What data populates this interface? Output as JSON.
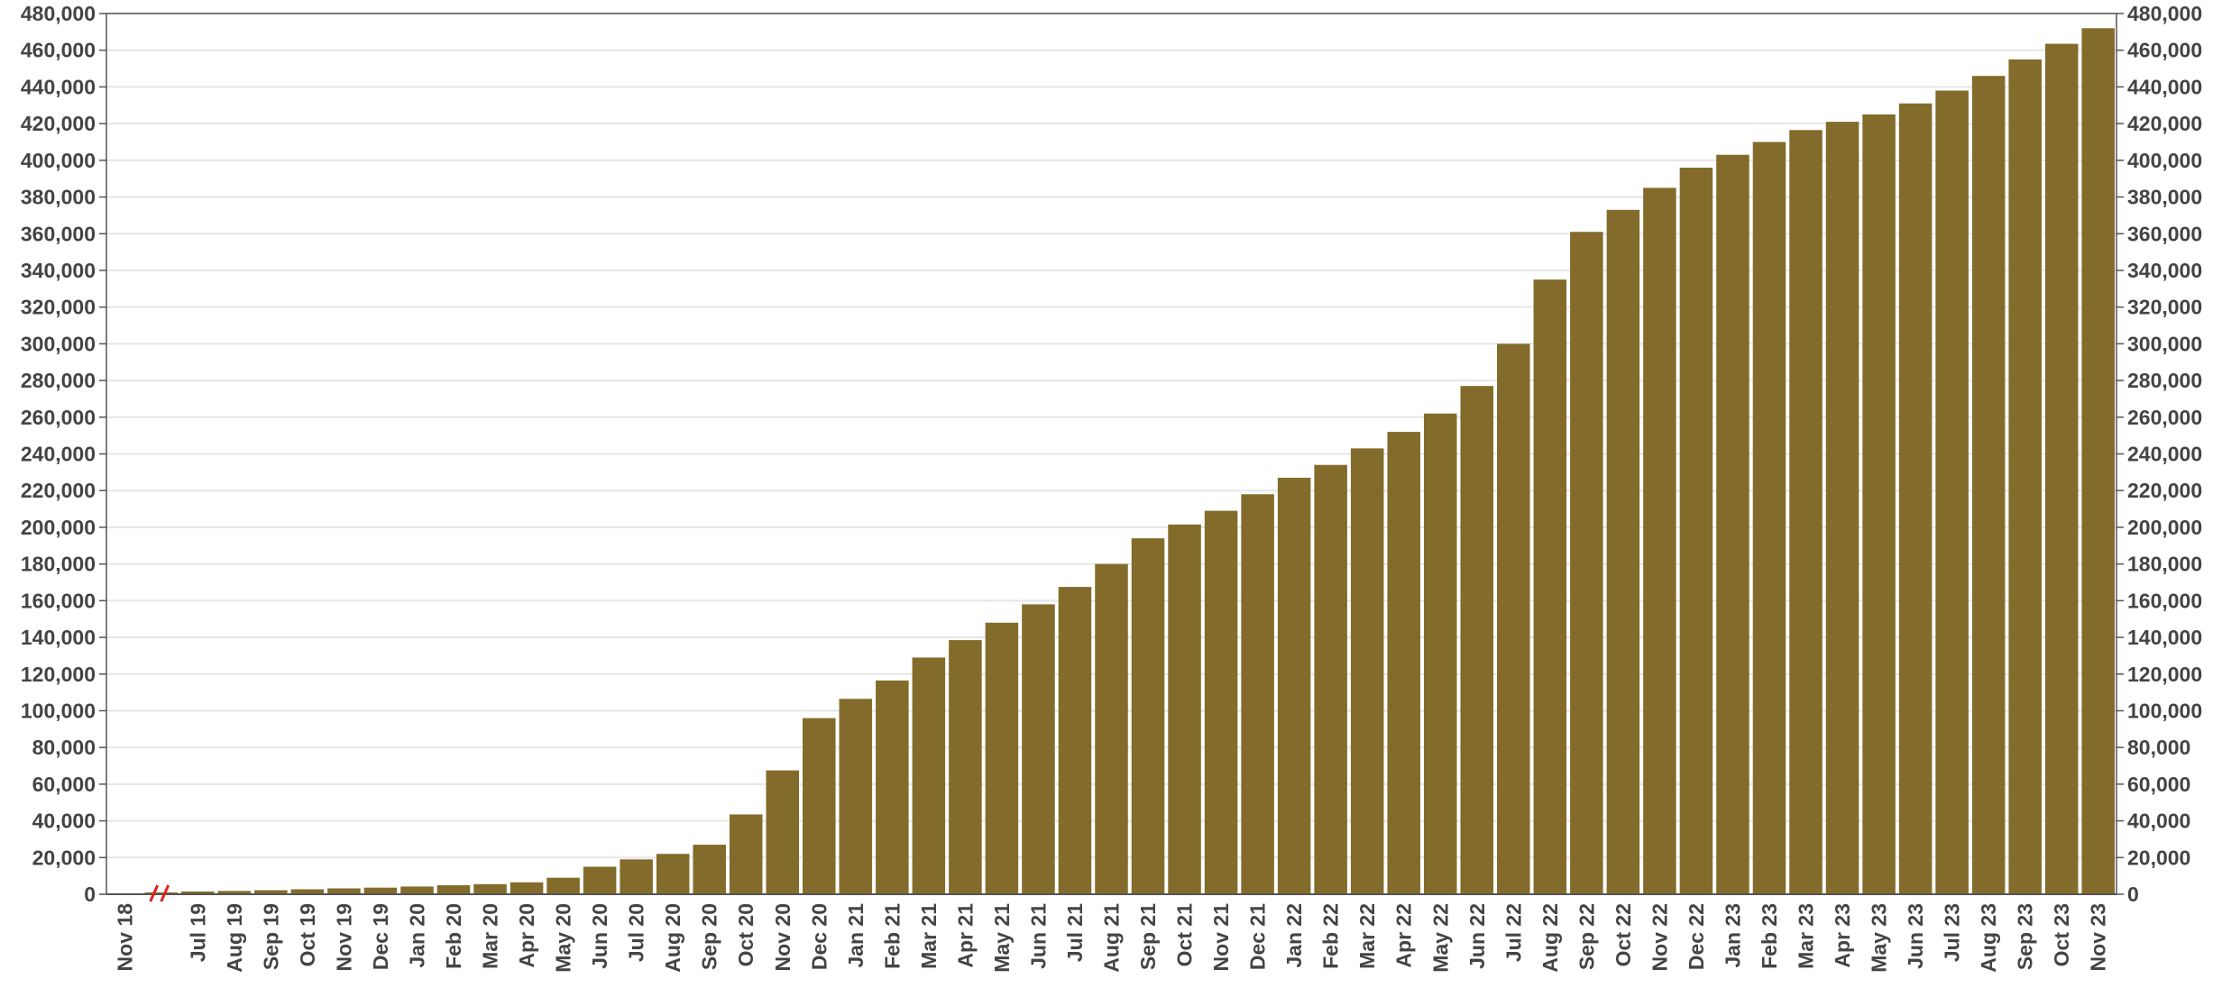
{
  "chart_data": {
    "type": "bar",
    "title": "",
    "xlabel": "",
    "ylabel": "",
    "ylim": [
      0,
      480000
    ],
    "y_tick_step": 20000,
    "grid": true,
    "y_axis_sides": [
      "left",
      "right"
    ],
    "axis_break_after_first_category": true,
    "colors": {
      "bar": "#836C2B",
      "grid": "#e6e6e6",
      "axis": "#555555",
      "text": "#444444",
      "axis_break": "#e02020"
    },
    "categories": [
      "Nov 18",
      "",
      "Jul 19",
      "Aug 19",
      "Sep 19",
      "Oct 19",
      "Nov 19",
      "Dec 19",
      "Jan 20",
      "Feb 20",
      "Mar 20",
      "Apr 20",
      "May 20",
      "Jun 20",
      "Jul 20",
      "Aug 20",
      "Sep 20",
      "Oct 20",
      "Nov 20",
      "Dec 20",
      "Jan 21",
      "Feb 21",
      "Mar 21",
      "Apr 21",
      "May 21",
      "Jun 21",
      "Jul 21",
      "Aug 21",
      "Sep 21",
      "Oct 21",
      "Nov 21",
      "Dec 21",
      "Jan 22",
      "Feb 22",
      "Mar 22",
      "Apr 22",
      "May 22",
      "Jun 22",
      "Jul 22",
      "Aug 22",
      "Sep 22",
      "Oct 22",
      "Nov 22",
      "Dec 22",
      "Jan 23",
      "Feb 23",
      "Mar 23",
      "Apr 23",
      "May 23",
      "Jun 23",
      "Jul 23",
      "Aug 23",
      "Sep 23",
      "Oct 23",
      "Nov 23"
    ],
    "values": [
      0,
      1000,
      1500,
      1800,
      2200,
      2700,
      3200,
      3600,
      4200,
      4900,
      5500,
      6500,
      9000,
      15000,
      19000,
      22000,
      27000,
      43500,
      67500,
      96000,
      106500,
      116500,
      129000,
      138500,
      148000,
      158000,
      167500,
      180000,
      194000,
      201500,
      209000,
      218000,
      227000,
      234000,
      243000,
      252000,
      262000,
      277000,
      300000,
      335000,
      361000,
      373000,
      385000,
      396000,
      403000,
      410000,
      416500,
      421000,
      425000,
      431000,
      438000,
      446000,
      455000,
      463500,
      472000
    ]
  }
}
